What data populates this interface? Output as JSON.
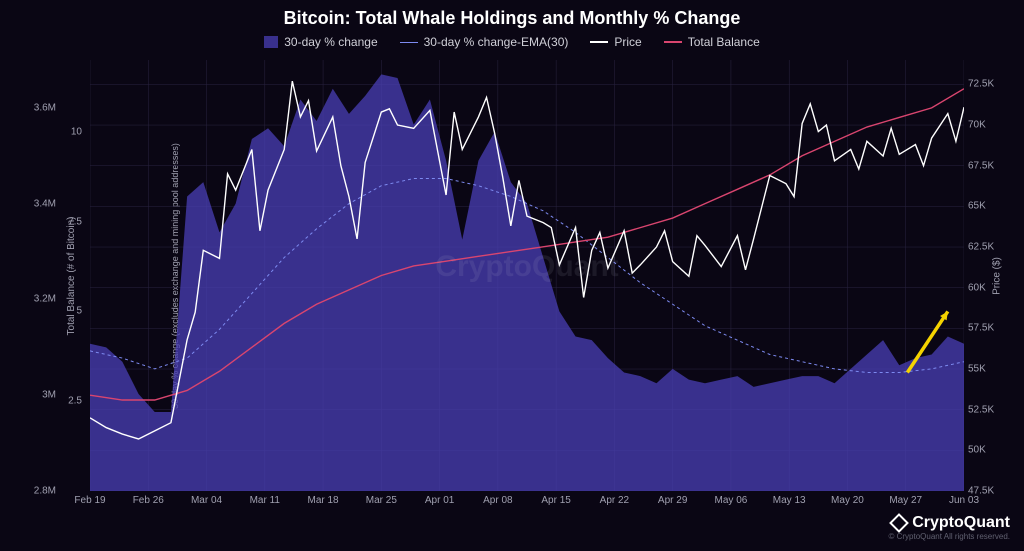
{
  "title": "Bitcoin: Total Whale Holdings and Monthly % Change",
  "legend": {
    "pct_change": "30-day % change",
    "ema": "30-day % change-EMA(30)",
    "price": "Price",
    "balance": "Total Balance"
  },
  "axes": {
    "left_outer_label": "Total Balance (# of Bitcoin)",
    "left_inner_label": "30-day % change (excludes exchange and mining pool addresses)",
    "right_label": "Price ($)",
    "left_outer_ticks": [
      {
        "v": 2.8,
        "label": "2.8M"
      },
      {
        "v": 3.0,
        "label": "3M"
      },
      {
        "v": 3.2,
        "label": "3.2M"
      },
      {
        "v": 3.4,
        "label": "3.4M"
      },
      {
        "v": 3.6,
        "label": "3.6M"
      }
    ],
    "left_outer_range": [
      2.8,
      3.7
    ],
    "left_inner_ticks": [
      {
        "v": 2.5,
        "label": "2.5"
      },
      {
        "v": 5.0,
        "label": "5"
      },
      {
        "v": 7.5,
        "label": "7.5"
      },
      {
        "v": 10.0,
        "label": "10"
      }
    ],
    "left_inner_range": [
      0,
      12
    ],
    "right_ticks": [
      {
        "v": 47500,
        "label": "47.5K"
      },
      {
        "v": 50000,
        "label": "50K"
      },
      {
        "v": 52500,
        "label": "52.5K"
      },
      {
        "v": 55000,
        "label": "55K"
      },
      {
        "v": 57500,
        "label": "57.5K"
      },
      {
        "v": 60000,
        "label": "60K"
      },
      {
        "v": 62500,
        "label": "62.5K"
      },
      {
        "v": 65000,
        "label": "65K"
      },
      {
        "v": 67500,
        "label": "67.5K"
      },
      {
        "v": 70000,
        "label": "70K"
      },
      {
        "v": 72500,
        "label": "72.5K"
      }
    ],
    "right_range": [
      47500,
      74000
    ],
    "x_ticks": [
      "Feb 19",
      "Feb 26",
      "Mar 04",
      "Mar 11",
      "Mar 18",
      "Mar 25",
      "Apr 01",
      "Apr 08",
      "Apr 15",
      "Apr 22",
      "Apr 29",
      "May 06",
      "May 13",
      "May 20",
      "May 27",
      "Jun 03"
    ],
    "x_range": [
      0,
      108
    ]
  },
  "colors": {
    "background": "#0a0614",
    "area_fill": "#4a3fb5",
    "area_opacity": 0.75,
    "ema_line": "#7d8af0",
    "price_line": "#ffffff",
    "balance_line": "#d9456f",
    "grid": "#2a2440",
    "axis_text": "#a0a0b0",
    "arrow": "#f5d300"
  },
  "stroke_widths": {
    "price": 1.4,
    "ema": 1.0,
    "balance": 1.4
  },
  "series": {
    "pct_change_area": [
      [
        0,
        4.1
      ],
      [
        2,
        4.0
      ],
      [
        4,
        3.6
      ],
      [
        6,
        2.7
      ],
      [
        8,
        2.2
      ],
      [
        10,
        2.2
      ],
      [
        12,
        8.2
      ],
      [
        14,
        8.6
      ],
      [
        16,
        7.2
      ],
      [
        18,
        8.0
      ],
      [
        20,
        9.8
      ],
      [
        22,
        10.1
      ],
      [
        24,
        9.6
      ],
      [
        26,
        10.9
      ],
      [
        28,
        10.3
      ],
      [
        30,
        11.2
      ],
      [
        32,
        10.5
      ],
      [
        34,
        11.0
      ],
      [
        36,
        11.6
      ],
      [
        38,
        11.5
      ],
      [
        40,
        10.2
      ],
      [
        42,
        10.9
      ],
      [
        44,
        9.2
      ],
      [
        46,
        7.0
      ],
      [
        48,
        9.2
      ],
      [
        50,
        10.0
      ],
      [
        52,
        8.6
      ],
      [
        54,
        8.0
      ],
      [
        56,
        6.5
      ],
      [
        58,
        5.0
      ],
      [
        60,
        4.3
      ],
      [
        62,
        4.2
      ],
      [
        64,
        3.7
      ],
      [
        66,
        3.3
      ],
      [
        68,
        3.2
      ],
      [
        70,
        3.0
      ],
      [
        72,
        3.4
      ],
      [
        74,
        3.1
      ],
      [
        76,
        3.0
      ],
      [
        78,
        3.1
      ],
      [
        80,
        3.2
      ],
      [
        82,
        2.9
      ],
      [
        84,
        3.0
      ],
      [
        86,
        3.1
      ],
      [
        88,
        3.2
      ],
      [
        90,
        3.2
      ],
      [
        92,
        3.0
      ],
      [
        94,
        3.4
      ],
      [
        96,
        3.8
      ],
      [
        98,
        4.2
      ],
      [
        100,
        3.5
      ],
      [
        102,
        3.7
      ],
      [
        104,
        3.8
      ],
      [
        106,
        4.3
      ],
      [
        108,
        4.1
      ]
    ],
    "ema": [
      [
        0,
        3.9
      ],
      [
        4,
        3.7
      ],
      [
        8,
        3.4
      ],
      [
        12,
        3.7
      ],
      [
        16,
        4.5
      ],
      [
        20,
        5.5
      ],
      [
        24,
        6.5
      ],
      [
        28,
        7.3
      ],
      [
        32,
        8.0
      ],
      [
        36,
        8.5
      ],
      [
        40,
        8.7
      ],
      [
        44,
        8.7
      ],
      [
        48,
        8.5
      ],
      [
        52,
        8.2
      ],
      [
        56,
        7.8
      ],
      [
        60,
        7.2
      ],
      [
        64,
        6.5
      ],
      [
        68,
        5.8
      ],
      [
        72,
        5.2
      ],
      [
        76,
        4.6
      ],
      [
        80,
        4.2
      ],
      [
        84,
        3.8
      ],
      [
        88,
        3.6
      ],
      [
        92,
        3.4
      ],
      [
        96,
        3.3
      ],
      [
        100,
        3.3
      ],
      [
        104,
        3.4
      ],
      [
        108,
        3.6
      ]
    ],
    "price": [
      [
        0,
        52000
      ],
      [
        2,
        51400
      ],
      [
        4,
        51000
      ],
      [
        6,
        50700
      ],
      [
        8,
        51200
      ],
      [
        10,
        51700
      ],
      [
        12,
        56800
      ],
      [
        13,
        58500
      ],
      [
        14,
        62300
      ],
      [
        16,
        61800
      ],
      [
        17,
        67000
      ],
      [
        18,
        66000
      ],
      [
        20,
        68500
      ],
      [
        21,
        63500
      ],
      [
        22,
        66000
      ],
      [
        24,
        68500
      ],
      [
        25,
        72700
      ],
      [
        26,
        70500
      ],
      [
        27,
        71500
      ],
      [
        28,
        68400
      ],
      [
        30,
        70500
      ],
      [
        31,
        67500
      ],
      [
        32,
        65600
      ],
      [
        33,
        63000
      ],
      [
        34,
        67700
      ],
      [
        36,
        70800
      ],
      [
        37,
        71000
      ],
      [
        38,
        70000
      ],
      [
        40,
        69800
      ],
      [
        42,
        70900
      ],
      [
        44,
        65700
      ],
      [
        45,
        70800
      ],
      [
        46,
        68500
      ],
      [
        48,
        70500
      ],
      [
        49,
        71700
      ],
      [
        50,
        69500
      ],
      [
        51,
        66800
      ],
      [
        52,
        63800
      ],
      [
        53,
        66600
      ],
      [
        54,
        64400
      ],
      [
        56,
        64000
      ],
      [
        57,
        63700
      ],
      [
        58,
        61400
      ],
      [
        60,
        63700
      ],
      [
        61,
        59400
      ],
      [
        62,
        62300
      ],
      [
        63,
        63400
      ],
      [
        64,
        61200
      ],
      [
        66,
        63500
      ],
      [
        67,
        60900
      ],
      [
        68,
        61400
      ],
      [
        70,
        62500
      ],
      [
        71,
        63500
      ],
      [
        72,
        61600
      ],
      [
        74,
        60700
      ],
      [
        75,
        63200
      ],
      [
        76,
        62600
      ],
      [
        78,
        61300
      ],
      [
        80,
        63200
      ],
      [
        81,
        61100
      ],
      [
        82,
        63000
      ],
      [
        84,
        66900
      ],
      [
        86,
        66400
      ],
      [
        87,
        65600
      ],
      [
        88,
        70100
      ],
      [
        89,
        71300
      ],
      [
        90,
        69600
      ],
      [
        91,
        70000
      ],
      [
        92,
        67800
      ],
      [
        94,
        68500
      ],
      [
        95,
        67300
      ],
      [
        96,
        69000
      ],
      [
        98,
        68100
      ],
      [
        99,
        69800
      ],
      [
        100,
        68200
      ],
      [
        102,
        68800
      ],
      [
        103,
        67500
      ],
      [
        104,
        69200
      ],
      [
        106,
        70700
      ],
      [
        107,
        69000
      ],
      [
        108,
        71100
      ]
    ],
    "balance": [
      [
        0,
        3.0
      ],
      [
        4,
        2.99
      ],
      [
        8,
        2.99
      ],
      [
        12,
        3.01
      ],
      [
        16,
        3.05
      ],
      [
        20,
        3.1
      ],
      [
        24,
        3.15
      ],
      [
        28,
        3.19
      ],
      [
        32,
        3.22
      ],
      [
        36,
        3.25
      ],
      [
        40,
        3.27
      ],
      [
        44,
        3.28
      ],
      [
        48,
        3.29
      ],
      [
        52,
        3.3
      ],
      [
        56,
        3.31
      ],
      [
        60,
        3.32
      ],
      [
        64,
        3.33
      ],
      [
        68,
        3.35
      ],
      [
        72,
        3.37
      ],
      [
        76,
        3.4
      ],
      [
        80,
        3.43
      ],
      [
        84,
        3.46
      ],
      [
        88,
        3.5
      ],
      [
        92,
        3.53
      ],
      [
        96,
        3.56
      ],
      [
        100,
        3.58
      ],
      [
        104,
        3.6
      ],
      [
        108,
        3.64
      ]
    ]
  },
  "arrow": {
    "from": [
      101,
      3.3
    ],
    "to": [
      106,
      5.0
    ]
  },
  "watermark": "CryptoQuant",
  "branding": {
    "logo": "CryptoQuant",
    "copyright": "© CryptoQuant All rights reserved."
  }
}
